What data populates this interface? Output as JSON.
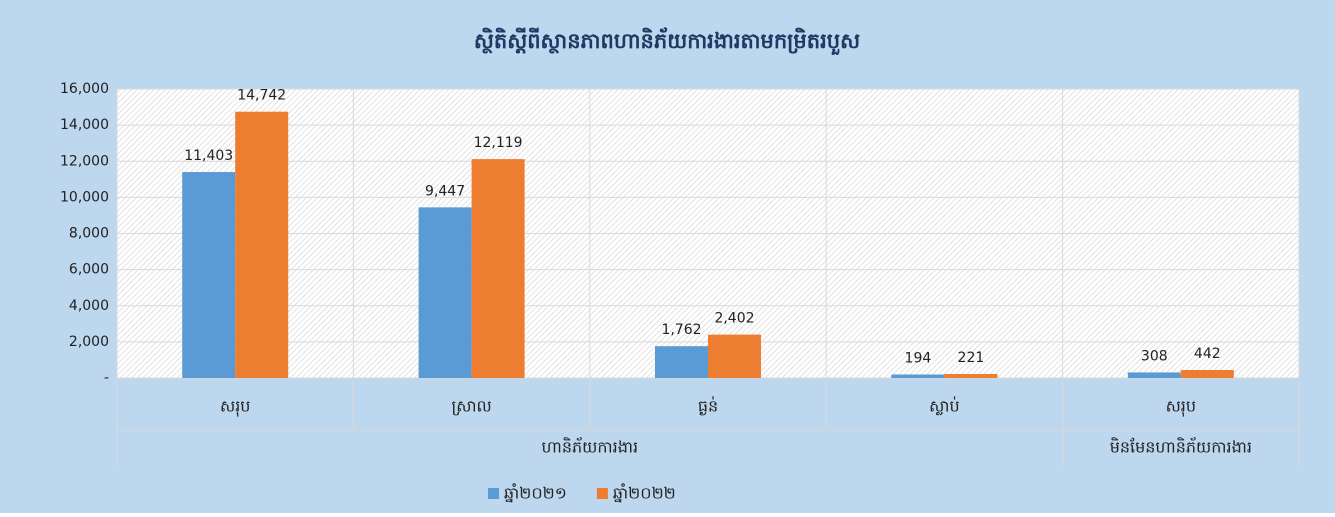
{
  "chart_data": {
    "type": "bar",
    "title": "ស្ថិតិស្តីពីស្ថានភាពហានិភ័យការងារតាមកម្រិតរបួស",
    "groups": [
      {
        "name": "ហានិភ័យការងារ",
        "categories": [
          "សរុប",
          "ស្រាល",
          "ធ្ងន់",
          "ស្លាប់"
        ]
      },
      {
        "name": "មិនមែនហានិភ័យការងារ",
        "categories": [
          "សរុប"
        ]
      }
    ],
    "series": [
      {
        "name": "ឆ្នាំ២០២១",
        "color": "#5b9bd5",
        "values": [
          11403,
          9447,
          1762,
          194,
          308
        ],
        "value_labels": [
          "11,403",
          "9,447",
          "1,762",
          "194",
          "308"
        ]
      },
      {
        "name": "ឆ្នាំ២០២២",
        "color": "#ed7d31",
        "values": [
          14742,
          12119,
          2402,
          221,
          442
        ],
        "value_labels": [
          "14,742",
          "12,119",
          "2,402",
          "221",
          "442"
        ]
      }
    ],
    "ylim": [
      0,
      16000
    ],
    "yticks": [
      {
        "value": 0,
        "label": "-"
      },
      {
        "value": 2000,
        "label": "2,000"
      },
      {
        "value": 4000,
        "label": "4,000"
      },
      {
        "value": 6000,
        "label": "6,000"
      },
      {
        "value": 8000,
        "label": "8,000"
      },
      {
        "value": 10000,
        "label": "10,000"
      },
      {
        "value": 12000,
        "label": "12,000"
      },
      {
        "value": 14000,
        "label": "14,000"
      },
      {
        "value": 16000,
        "label": "16,000"
      }
    ],
    "grid": true,
    "legend": "bottom"
  }
}
